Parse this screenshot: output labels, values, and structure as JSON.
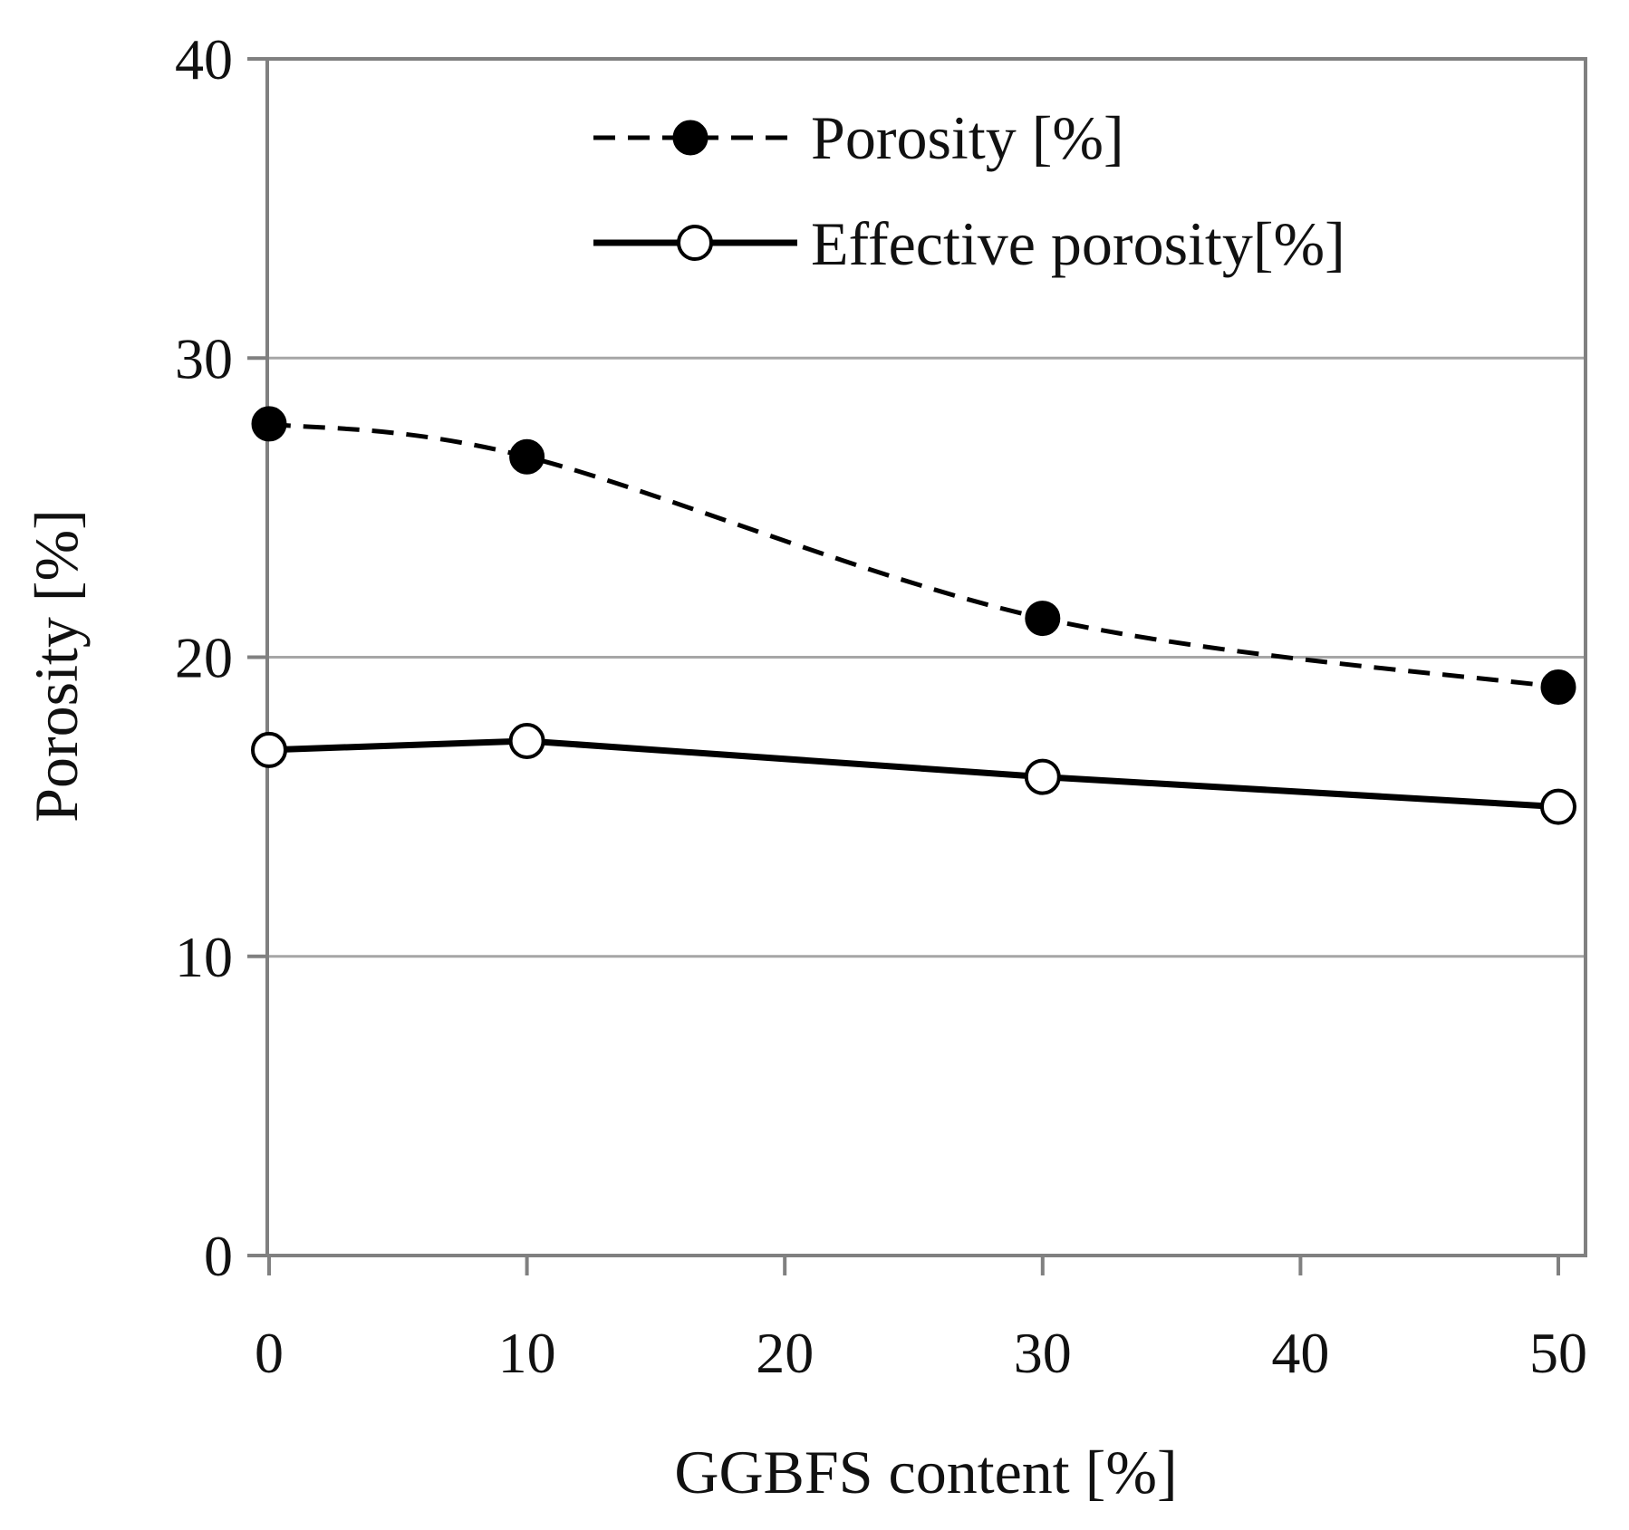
{
  "chart_data": {
    "type": "line",
    "title": "",
    "xlabel": "GGBFS content [%]",
    "ylabel": "Porosity [%]",
    "xlim": [
      0,
      50
    ],
    "ylim": [
      0,
      40
    ],
    "x_ticks": [
      0,
      10,
      20,
      30,
      40,
      50
    ],
    "x_tick_labels": [
      "0",
      "10",
      "20",
      "30",
      "40",
      "50"
    ],
    "y_ticks": [
      0,
      10,
      20,
      30,
      40
    ],
    "y_tick_labels": [
      "0",
      "10",
      "20",
      "30",
      "40"
    ],
    "grid": "horizontal",
    "legend_position": "top-center",
    "x": [
      0,
      10,
      30,
      50
    ],
    "series": [
      {
        "name": "Porosity [%]",
        "values": [
          27.8,
          26.7,
          21.3,
          19.0
        ],
        "line_style": "dashed",
        "marker": "filled-circle",
        "smooth": true
      },
      {
        "name": "Effective porosity[%]",
        "values": [
          16.9,
          17.2,
          16.0,
          15.0
        ],
        "line_style": "solid",
        "marker": "open-circle",
        "smooth": false
      }
    ],
    "colors": {
      "line": "#000000",
      "grid": "#a6a6a6",
      "axis": "#808080",
      "open_marker_fill": "#ffffff"
    }
  }
}
